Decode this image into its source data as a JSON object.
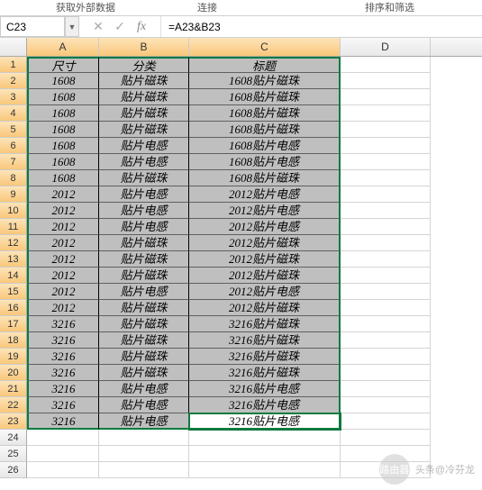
{
  "ribbon": {
    "group1": "获取外部数据",
    "group2": "连接",
    "group3": "排序和筛选"
  },
  "formula_bar": {
    "cell_ref": "C23",
    "formula": "=A23&B23",
    "cancel": "✕",
    "enter": "✓",
    "fx": "fx"
  },
  "columns": [
    "A",
    "B",
    "C",
    "D"
  ],
  "headers": {
    "A": "尺寸",
    "B": "分类",
    "C": "标题"
  },
  "rows": [
    {
      "n": 1,
      "A": "尺寸",
      "B": "分类",
      "C": "标题"
    },
    {
      "n": 2,
      "A": "1608",
      "B": "贴片磁珠",
      "C": "1608贴片磁珠"
    },
    {
      "n": 3,
      "A": "1608",
      "B": "贴片磁珠",
      "C": "1608贴片磁珠"
    },
    {
      "n": 4,
      "A": "1608",
      "B": "贴片磁珠",
      "C": "1608贴片磁珠"
    },
    {
      "n": 5,
      "A": "1608",
      "B": "贴片磁珠",
      "C": "1608贴片磁珠"
    },
    {
      "n": 6,
      "A": "1608",
      "B": "贴片电感",
      "C": "1608贴片电感"
    },
    {
      "n": 7,
      "A": "1608",
      "B": "贴片电感",
      "C": "1608贴片电感"
    },
    {
      "n": 8,
      "A": "1608",
      "B": "贴片磁珠",
      "C": "1608贴片磁珠"
    },
    {
      "n": 9,
      "A": "2012",
      "B": "贴片电感",
      "C": "2012贴片电感"
    },
    {
      "n": 10,
      "A": "2012",
      "B": "贴片电感",
      "C": "2012贴片电感"
    },
    {
      "n": 11,
      "A": "2012",
      "B": "贴片电感",
      "C": "2012贴片电感"
    },
    {
      "n": 12,
      "A": "2012",
      "B": "贴片磁珠",
      "C": "2012贴片磁珠"
    },
    {
      "n": 13,
      "A": "2012",
      "B": "贴片磁珠",
      "C": "2012贴片磁珠"
    },
    {
      "n": 14,
      "A": "2012",
      "B": "贴片磁珠",
      "C": "2012贴片磁珠"
    },
    {
      "n": 15,
      "A": "2012",
      "B": "贴片电感",
      "C": "2012贴片电感"
    },
    {
      "n": 16,
      "A": "2012",
      "B": "贴片磁珠",
      "C": "2012贴片磁珠"
    },
    {
      "n": 17,
      "A": "3216",
      "B": "贴片磁珠",
      "C": "3216贴片磁珠"
    },
    {
      "n": 18,
      "A": "3216",
      "B": "贴片磁珠",
      "C": "3216贴片磁珠"
    },
    {
      "n": 19,
      "A": "3216",
      "B": "贴片磁珠",
      "C": "3216贴片磁珠"
    },
    {
      "n": 20,
      "A": "3216",
      "B": "贴片磁珠",
      "C": "3216贴片磁珠"
    },
    {
      "n": 21,
      "A": "3216",
      "B": "贴片电感",
      "C": "3216贴片电感"
    },
    {
      "n": 22,
      "A": "3216",
      "B": "贴片电感",
      "C": "3216贴片电感"
    },
    {
      "n": 23,
      "A": "3216",
      "B": "贴片电感",
      "C": "3216贴片电感"
    }
  ],
  "empty_rows": [
    24,
    25,
    26
  ],
  "active_cell": "C23",
  "selected_colhdrs": [
    "A",
    "B",
    "C"
  ],
  "watermark": {
    "label": "路由器",
    "author": "头条@冷芬龙"
  },
  "style": {
    "data_bg": "#bfbfbf",
    "sel_border": "#0a7a3e",
    "hdr_sel_bg": "#f9c77a"
  }
}
